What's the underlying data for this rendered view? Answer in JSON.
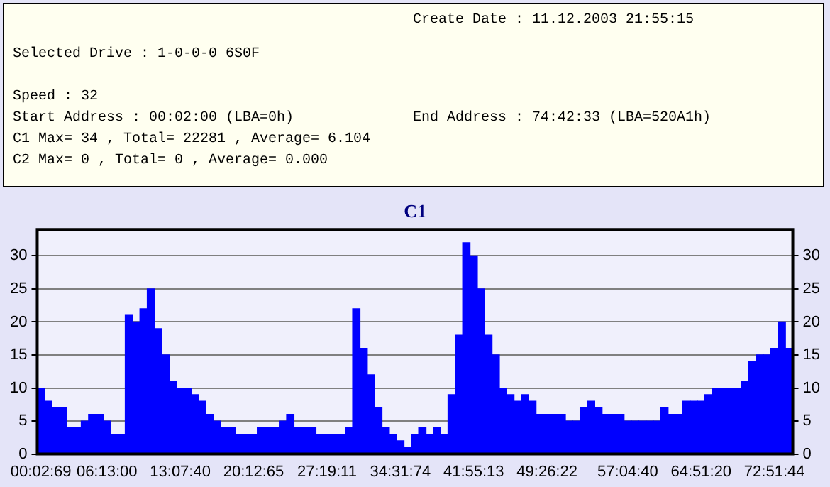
{
  "chart_data": [
    {
      "type": "other",
      "annotations": [
        "Create Date : 11.12.2003 21:55:15",
        "Selected Drive : 1-0-0-0 6S0F",
        "Speed : 32",
        "Start Address : 00:02:00 (LBA=0h)",
        "End Address : 74:42:33 (LBA=520A1h)",
        "C1 Max= 34 , Total= 22281 , Average= 6.104",
        "C2 Max= 0 , Total= 0 , Average= 0.000"
      ]
    },
    {
      "type": "bar",
      "title": "C1",
      "color": "#0000ff",
      "categories": [
        "00:02:69",
        null,
        null,
        null,
        null,
        null,
        null,
        null,
        null,
        "06:13:00",
        null,
        null,
        null,
        null,
        null,
        null,
        null,
        null,
        null,
        "13:07:40",
        null,
        null,
        null,
        null,
        null,
        null,
        null,
        null,
        null,
        "20:12:65",
        null,
        null,
        null,
        null,
        null,
        null,
        null,
        null,
        null,
        "27:19:11",
        null,
        null,
        null,
        null,
        null,
        null,
        null,
        null,
        null,
        "34:31:74",
        null,
        null,
        null,
        null,
        null,
        null,
        null,
        null,
        null,
        "41:55:13",
        null,
        null,
        null,
        null,
        null,
        null,
        null,
        null,
        null,
        "49:26:22",
        null,
        null,
        null,
        null,
        null,
        null,
        null,
        null,
        null,
        null,
        "57:04:40",
        null,
        null,
        null,
        null,
        null,
        null,
        null,
        null,
        null,
        "64:51:20",
        null,
        null,
        null,
        null,
        null,
        null,
        null,
        null,
        null,
        "72:51:44",
        null,
        null
      ],
      "values": [
        10,
        8,
        7,
        7,
        4,
        4,
        5,
        6,
        6,
        5,
        3,
        3,
        21,
        20,
        22,
        25,
        19,
        15,
        11,
        10,
        10,
        9,
        8,
        6,
        5,
        4,
        4,
        3,
        3,
        3,
        4,
        4,
        4,
        5,
        6,
        4,
        4,
        4,
        3,
        3,
        3,
        3,
        4,
        22,
        16,
        12,
        7,
        4,
        3,
        2,
        1,
        3,
        4,
        3,
        4,
        3,
        9,
        18,
        32,
        30,
        25,
        18,
        15,
        10,
        9,
        8,
        9,
        8,
        6,
        6,
        6,
        6,
        5,
        5,
        7,
        8,
        7,
        6,
        6,
        6,
        5,
        5,
        5,
        5,
        5,
        7,
        6,
        6,
        8,
        8,
        8,
        9,
        10,
        10,
        10,
        10,
        11,
        14,
        15,
        15,
        16,
        20,
        16
      ],
      "ylim": [
        0,
        34
      ],
      "yticks": [
        0,
        5,
        10,
        15,
        20,
        25,
        30
      ],
      "y2lim": [
        0,
        34
      ],
      "y2ticks": [
        0,
        5,
        10,
        15,
        20,
        25,
        30
      ],
      "grid": "y"
    }
  ]
}
